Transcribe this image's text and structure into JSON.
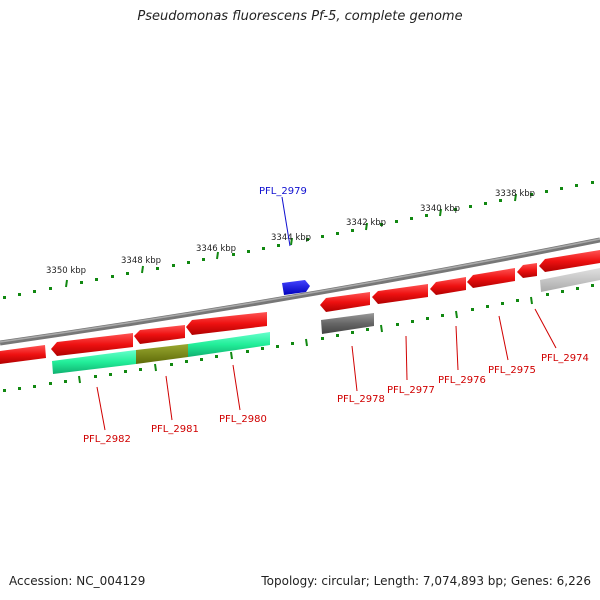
{
  "title": "Pseudomonas fluorescens Pf-5, complete genome",
  "footer": {
    "accession": "Accession: NC_004129",
    "summary": "Topology: circular; Length: 7,074,893 bp; Genes: 6,226"
  },
  "kbp_labels": [
    "3350 kbp",
    "3348 kbp",
    "3346 kbp",
    "3344 kbp",
    "3342 kbp",
    "3340 kbp",
    "3338 kbp"
  ],
  "genes": [
    {
      "label": "PFL_2979",
      "color": "#1010d0"
    },
    {
      "label": "PFL_2982",
      "color": "#d00000"
    },
    {
      "label": "PFL_2981",
      "color": "#d00000"
    },
    {
      "label": "PFL_2980",
      "color": "#d00000"
    },
    {
      "label": "PFL_2978",
      "color": "#d00000"
    },
    {
      "label": "PFL_2977",
      "color": "#d00000"
    },
    {
      "label": "PFL_2976",
      "color": "#d00000"
    },
    {
      "label": "PFL_2975",
      "color": "#d00000"
    },
    {
      "label": "PFL_2974",
      "color": "#d00000"
    }
  ],
  "colors": {
    "cds": "#ee1111",
    "backbone": "#777777",
    "highlight": "#22ee99",
    "overlap": "#7a8a10",
    "gray_feature": "#666666",
    "tick": "#118811",
    "blue_feature": "#0000ee"
  }
}
